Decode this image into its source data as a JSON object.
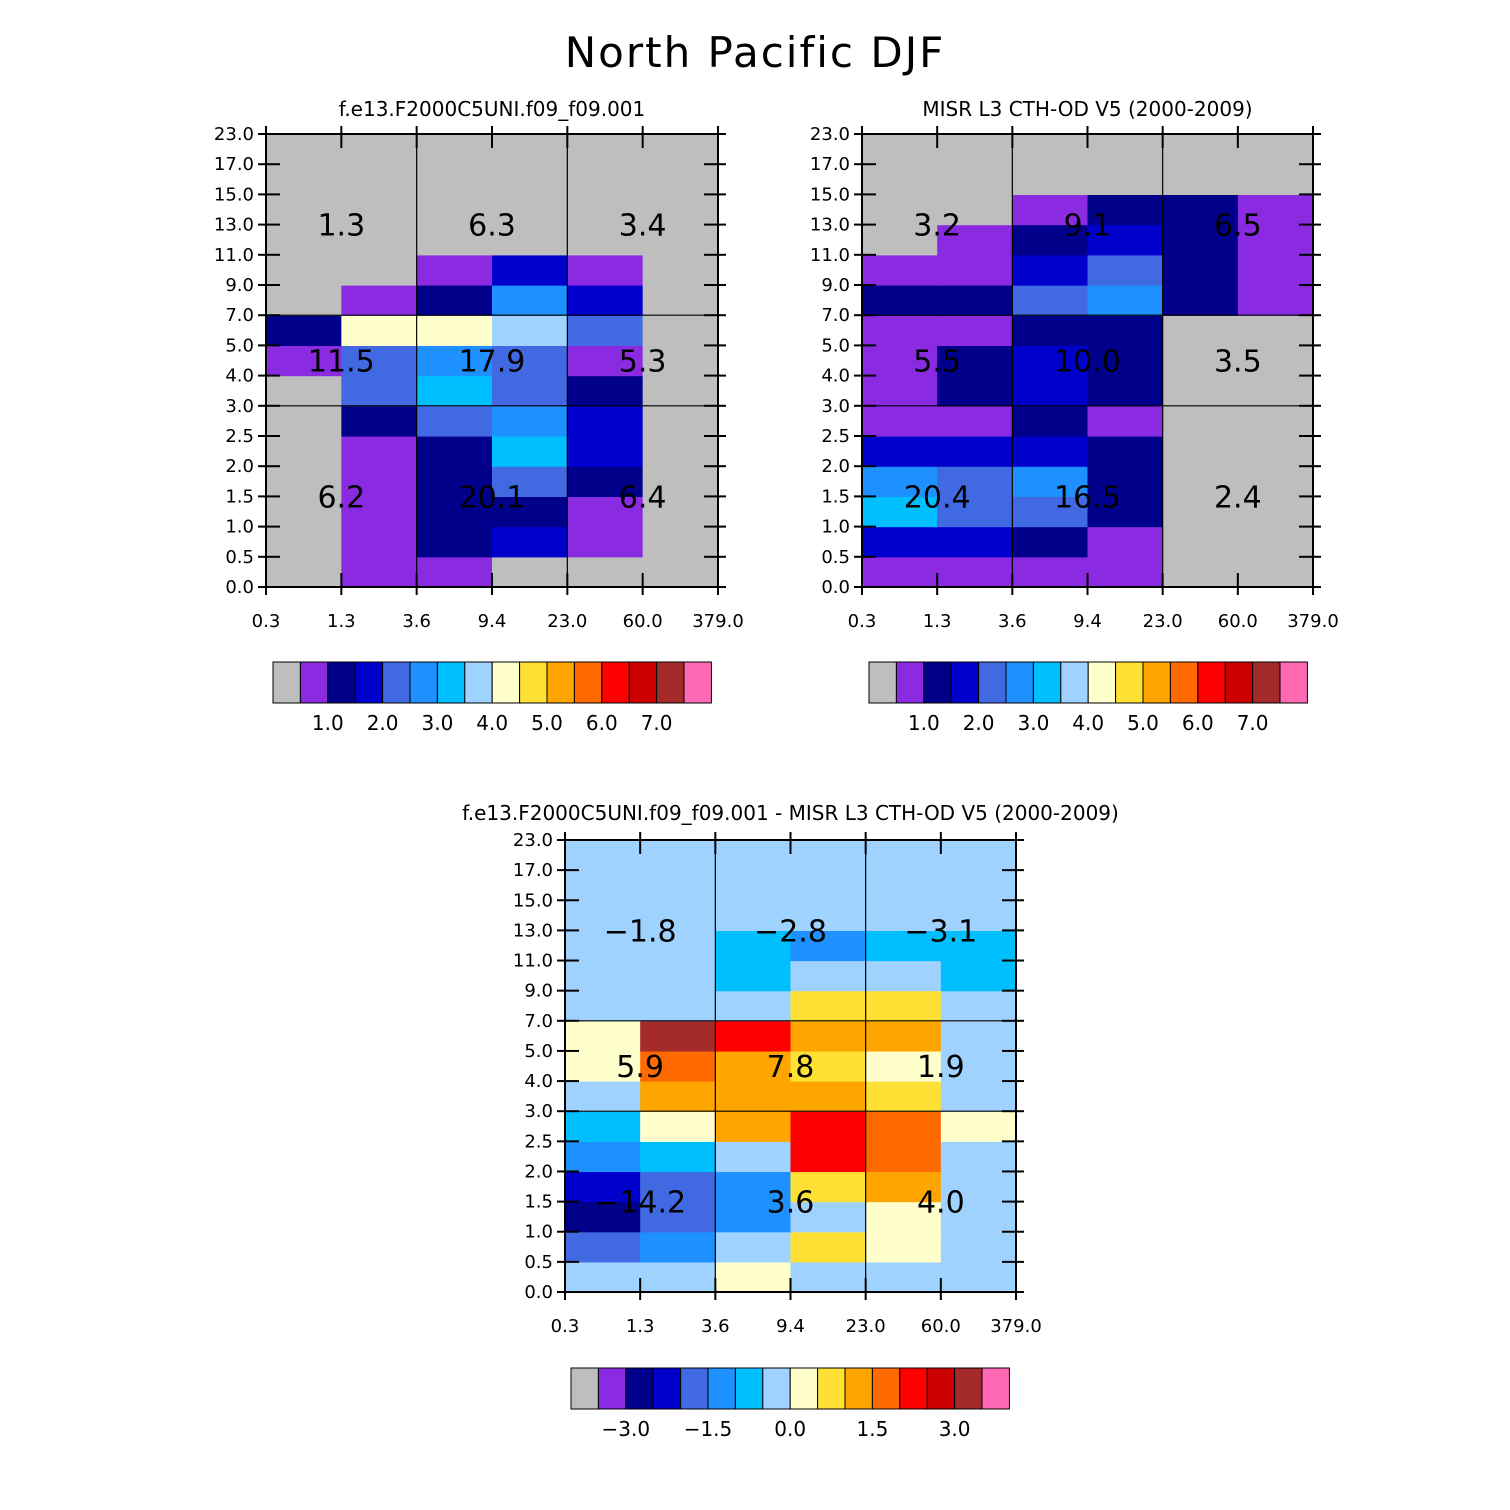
{
  "figure": {
    "title": "North Pacific DJF"
  },
  "chart_data": [
    {
      "id": "model",
      "type": "heatmap",
      "title": "f.e13.F2000C5UNI.f09_f09.001",
      "x_tick_labels": [
        "0.3",
        "1.3",
        "3.6",
        "9.4",
        "23.0",
        "60.0",
        "379.0"
      ],
      "y_tick_labels": [
        "0.0",
        "0.5",
        "1.0",
        "1.5",
        "2.0",
        "2.5",
        "3.0",
        "4.0",
        "5.0",
        "7.0",
        "9.0",
        "11.0",
        "13.0",
        "15.0",
        "17.0",
        "23.0"
      ],
      "grid": "rows bottom-to-top (cloud top height bins), columns left-to-right (optical depth bins); values are colorbar class index 0..15",
      "cells": [
        [
          0,
          1,
          1,
          0,
          0,
          0
        ],
        [
          0,
          1,
          2,
          3,
          1,
          0
        ],
        [
          0,
          1,
          2,
          2,
          1,
          0
        ],
        [
          0,
          1,
          2,
          4,
          2,
          0
        ],
        [
          0,
          1,
          2,
          6,
          3,
          0
        ],
        [
          0,
          2,
          4,
          5,
          3,
          0
        ],
        [
          0,
          4,
          6,
          4,
          2,
          0
        ],
        [
          1,
          4,
          5,
          4,
          1,
          0
        ],
        [
          2,
          8,
          8,
          7,
          4,
          0
        ],
        [
          0,
          1,
          2,
          5,
          3,
          0
        ],
        [
          0,
          0,
          1,
          3,
          1,
          0
        ],
        [
          0,
          0,
          0,
          0,
          0,
          0
        ],
        [
          0,
          0,
          0,
          0,
          0,
          0
        ],
        [
          0,
          0,
          0,
          0,
          0,
          0
        ],
        [
          0,
          0,
          0,
          0,
          0,
          0
        ]
      ],
      "region_values": [
        {
          "label": "1.3",
          "col": 1,
          "row": 12
        },
        {
          "label": "6.3",
          "col": 3,
          "row": 12
        },
        {
          "label": "3.4",
          "col": 5,
          "row": 12
        },
        {
          "label": "11.5",
          "col": 1,
          "row": 7.5
        },
        {
          "label": "17.9",
          "col": 3,
          "row": 7.5
        },
        {
          "label": "5.3",
          "col": 5,
          "row": 7.5
        },
        {
          "label": "6.2",
          "col": 1,
          "row": 3
        },
        {
          "label": "20.1",
          "col": 3,
          "row": 3
        },
        {
          "label": "6.4",
          "col": 5,
          "row": 3
        }
      ],
      "colorbar": {
        "colors": [
          "#bebebe",
          "#8a2be2",
          "#00008b",
          "#0000cd",
          "#4169e1",
          "#1e90ff",
          "#00bfff",
          "#a0d2ff",
          "#ffffcc",
          "#ffe135",
          "#ffa500",
          "#ff6a00",
          "#ff0000",
          "#cd0000",
          "#a52a2a",
          "#ff69b4"
        ],
        "labels": [
          "1.0",
          "2.0",
          "3.0",
          "4.0",
          "5.0",
          "6.0",
          "7.0"
        ],
        "label_boundaries": [
          2,
          4,
          6,
          8,
          10,
          12,
          14
        ]
      }
    },
    {
      "id": "obs",
      "type": "heatmap",
      "title": "MISR L3 CTH-OD V5 (2000-2009)",
      "x_tick_labels": [
        "0.3",
        "1.3",
        "3.6",
        "9.4",
        "23.0",
        "60.0",
        "379.0"
      ],
      "y_tick_labels": [
        "0.0",
        "0.5",
        "1.0",
        "1.5",
        "2.0",
        "2.5",
        "3.0",
        "4.0",
        "5.0",
        "7.0",
        "9.0",
        "11.0",
        "13.0",
        "15.0",
        "17.0",
        "23.0"
      ],
      "grid": "rows bottom-to-top, columns left-to-right; values are colorbar class index 0..15",
      "cells": [
        [
          1,
          1,
          1,
          1,
          0,
          0
        ],
        [
          3,
          3,
          2,
          1,
          0,
          0
        ],
        [
          6,
          4,
          4,
          2,
          0,
          0
        ],
        [
          5,
          4,
          5,
          2,
          0,
          0
        ],
        [
          3,
          3,
          3,
          2,
          0,
          0
        ],
        [
          1,
          1,
          2,
          1,
          0,
          0
        ],
        [
          1,
          2,
          3,
          2,
          0,
          0
        ],
        [
          1,
          2,
          3,
          2,
          0,
          0
        ],
        [
          1,
          1,
          2,
          2,
          0,
          0
        ],
        [
          2,
          2,
          4,
          5,
          2,
          1
        ],
        [
          1,
          1,
          3,
          4,
          2,
          1
        ],
        [
          0,
          1,
          2,
          3,
          2,
          1
        ],
        [
          0,
          0,
          1,
          2,
          2,
          1
        ],
        [
          0,
          0,
          0,
          0,
          0,
          0
        ],
        [
          0,
          0,
          0,
          0,
          0,
          0
        ]
      ],
      "region_values": [
        {
          "label": "3.2",
          "col": 1,
          "row": 12
        },
        {
          "label": "9.1",
          "col": 3,
          "row": 12
        },
        {
          "label": "6.5",
          "col": 5,
          "row": 12
        },
        {
          "label": "5.5",
          "col": 1,
          "row": 7.5
        },
        {
          "label": "10.0",
          "col": 3,
          "row": 7.5
        },
        {
          "label": "3.5",
          "col": 5,
          "row": 7.5
        },
        {
          "label": "20.4",
          "col": 1,
          "row": 3
        },
        {
          "label": "16.5",
          "col": 3,
          "row": 3
        },
        {
          "label": "2.4",
          "col": 5,
          "row": 3
        }
      ],
      "colorbar": {
        "colors": [
          "#bebebe",
          "#8a2be2",
          "#00008b",
          "#0000cd",
          "#4169e1",
          "#1e90ff",
          "#00bfff",
          "#a0d2ff",
          "#ffffcc",
          "#ffe135",
          "#ffa500",
          "#ff6a00",
          "#ff0000",
          "#cd0000",
          "#a52a2a",
          "#ff69b4"
        ],
        "labels": [
          "1.0",
          "2.0",
          "3.0",
          "4.0",
          "5.0",
          "6.0",
          "7.0"
        ],
        "label_boundaries": [
          2,
          4,
          6,
          8,
          10,
          12,
          14
        ]
      }
    },
    {
      "id": "diff",
      "type": "heatmap",
      "title": "f.e13.F2000C5UNI.f09_f09.001 - MISR L3 CTH-OD V5 (2000-2009)",
      "x_tick_labels": [
        "0.3",
        "1.3",
        "3.6",
        "9.4",
        "23.0",
        "60.0",
        "379.0"
      ],
      "y_tick_labels": [
        "0.0",
        "0.5",
        "1.0",
        "1.5",
        "2.0",
        "2.5",
        "3.0",
        "4.0",
        "5.0",
        "7.0",
        "9.0",
        "11.0",
        "13.0",
        "15.0",
        "17.0",
        "23.0"
      ],
      "grid": "rows bottom-to-top, columns left-to-right; values are colorbar class index 0..15",
      "cells": [
        [
          7,
          7,
          8,
          7,
          7,
          7
        ],
        [
          4,
          5,
          7,
          9,
          8,
          7
        ],
        [
          2,
          4,
          5,
          7,
          8,
          7
        ],
        [
          3,
          4,
          5,
          9,
          10,
          7
        ],
        [
          5,
          6,
          7,
          12,
          11,
          7
        ],
        [
          6,
          8,
          10,
          12,
          11,
          8
        ],
        [
          7,
          10,
          10,
          10,
          9,
          7
        ],
        [
          8,
          11,
          10,
          9,
          8,
          7
        ],
        [
          8,
          14,
          12,
          10,
          10,
          7
        ],
        [
          7,
          7,
          7,
          9,
          9,
          7
        ],
        [
          7,
          7,
          6,
          7,
          7,
          6
        ],
        [
          7,
          7,
          6,
          5,
          6,
          6
        ],
        [
          7,
          7,
          7,
          7,
          7,
          7
        ],
        [
          7,
          7,
          7,
          7,
          7,
          7
        ],
        [
          7,
          7,
          7,
          7,
          7,
          7
        ]
      ],
      "region_values": [
        {
          "label": "−1.8",
          "col": 1,
          "row": 12
        },
        {
          "label": "−2.8",
          "col": 3,
          "row": 12
        },
        {
          "label": "−3.1",
          "col": 5,
          "row": 12
        },
        {
          "label": "5.9",
          "col": 1,
          "row": 7.5
        },
        {
          "label": "7.8",
          "col": 3,
          "row": 7.5
        },
        {
          "label": "1.9",
          "col": 5,
          "row": 7.5
        },
        {
          "label": "−14.2",
          "col": 1,
          "row": 3
        },
        {
          "label": "3.6",
          "col": 3,
          "row": 3
        },
        {
          "label": "4.0",
          "col": 5,
          "row": 3
        }
      ],
      "colorbar": {
        "colors": [
          "#bebebe",
          "#8a2be2",
          "#00008b",
          "#0000cd",
          "#4169e1",
          "#1e90ff",
          "#00bfff",
          "#a0d2ff",
          "#ffffcc",
          "#ffe135",
          "#ffa500",
          "#ff6a00",
          "#ff0000",
          "#cd0000",
          "#a52a2a",
          "#ff69b4"
        ],
        "labels": [
          "−3.0",
          "−1.5",
          "0.0",
          "1.5",
          "3.0"
        ],
        "label_boundaries": [
          2,
          5,
          8,
          11,
          14
        ]
      }
    }
  ]
}
